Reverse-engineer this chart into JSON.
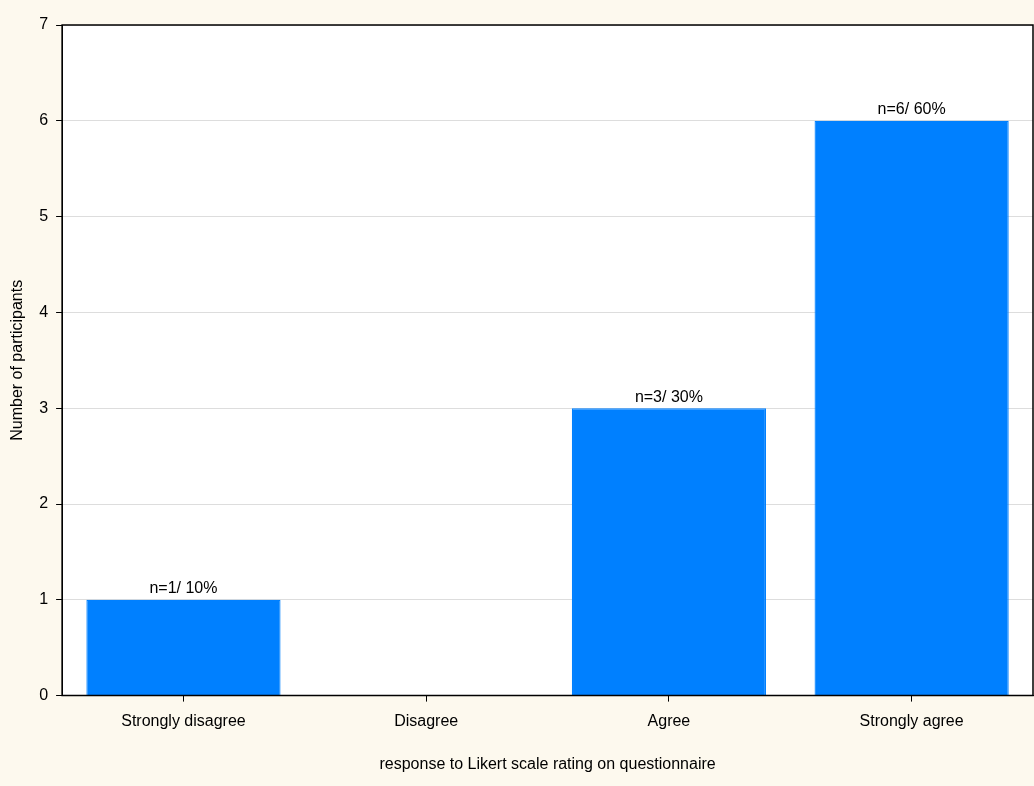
{
  "chart_data": {
    "type": "bar",
    "xlabel": "response to Likert scale rating on questionnaire",
    "ylabel": "Number of participants",
    "categories": [
      "Strongly disagree",
      "Disagree",
      "Agree",
      "Strongly agree"
    ],
    "values": [
      1,
      0,
      3,
      6
    ],
    "color": "#0080ff",
    "value_labels": [
      "n=1/ 10%",
      null,
      "n=3/ 30%",
      "n=6/ 60%"
    ],
    "ylim": [
      0,
      7
    ],
    "yticks": [
      0,
      1,
      2,
      3,
      4,
      5,
      6,
      7
    ],
    "grid": "y"
  }
}
